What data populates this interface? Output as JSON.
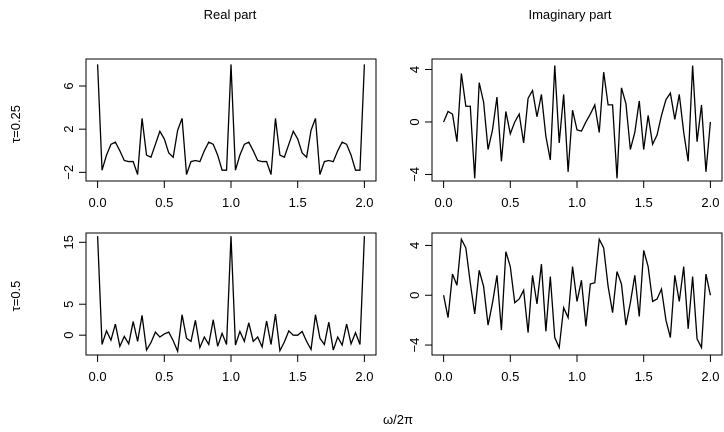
{
  "column_titles": [
    "Real part",
    "Imaginary part"
  ],
  "row_labels": [
    "τ=0.25",
    "τ=0.5"
  ],
  "shared_xlabel": "ω/2π",
  "chart_data": [
    {
      "type": "line",
      "panel": "top-left",
      "title": "Real part",
      "ylabel": "τ=0.25",
      "xlim": [
        0,
        2
      ],
      "ylim": [
        -2.8,
        8.5
      ],
      "xticks": [
        0.0,
        0.5,
        1.0,
        1.5,
        2.0
      ],
      "xtick_labels": [
        "0.0",
        "0.5",
        "1.0",
        "1.5",
        "2.0"
      ],
      "yticks": [
        -2,
        2,
        6
      ],
      "ytick_labels": [
        "−2",
        "2",
        "6"
      ],
      "x": [
        0,
        0.0333,
        0.0667,
        0.1,
        0.1333,
        0.1667,
        0.2,
        0.2333,
        0.2667,
        0.3,
        0.3333,
        0.3667,
        0.4,
        0.4333,
        0.4667,
        0.5,
        0.5333,
        0.5667,
        0.6,
        0.6333,
        0.6667,
        0.7,
        0.7333,
        0.7667,
        0.8,
        0.8333,
        0.8667,
        0.9,
        0.9333,
        0.9667,
        1.0,
        1.0333,
        1.0667,
        1.1,
        1.1333,
        1.1667,
        1.2,
        1.2333,
        1.2667,
        1.3,
        1.3333,
        1.3667,
        1.4,
        1.4333,
        1.4667,
        1.5,
        1.5333,
        1.5667,
        1.6,
        1.6333,
        1.6667,
        1.7,
        1.7333,
        1.7667,
        1.8,
        1.8333,
        1.8667,
        1.9,
        1.9333,
        1.9667,
        2.0
      ],
      "series": [
        {
          "values": [
            8.0,
            -1.8,
            -0.4,
            0.6,
            0.8,
            0.0,
            -0.9,
            -1.0,
            -1.0,
            -2.2,
            3.0,
            -0.4,
            -0.6,
            0.6,
            1.8,
            1.1,
            -0.2,
            -0.6,
            1.9,
            3.0,
            -2.2,
            -1.0,
            -0.9,
            -1.0,
            0.0,
            0.8,
            0.6,
            -0.4,
            -1.8,
            -1.8,
            8.0,
            -1.8,
            -0.4,
            0.6,
            0.8,
            0.0,
            -0.9,
            -1.0,
            -1.0,
            -2.2,
            3.0,
            -0.4,
            -0.6,
            0.6,
            1.8,
            1.1,
            -0.2,
            -0.6,
            1.9,
            3.0,
            -2.2,
            -1.0,
            -0.9,
            -1.0,
            0.0,
            0.8,
            0.6,
            -0.4,
            -1.8,
            -1.8,
            8.0
          ]
        }
      ]
    },
    {
      "type": "line",
      "panel": "top-right",
      "title": "Imaginary part",
      "xlim": [
        0,
        2
      ],
      "ylim": [
        -4.5,
        4.8
      ],
      "xticks": [
        0.0,
        0.5,
        1.0,
        1.5,
        2.0
      ],
      "xtick_labels": [
        "0.0",
        "0.5",
        "1.0",
        "1.5",
        "2.0"
      ],
      "yticks": [
        -4,
        0,
        4
      ],
      "ytick_labels": [
        "−4",
        "0",
        "4"
      ],
      "x": [
        0,
        0.0333,
        0.0667,
        0.1,
        0.1333,
        0.1667,
        0.2,
        0.2333,
        0.2667,
        0.3,
        0.3333,
        0.3667,
        0.4,
        0.4333,
        0.4667,
        0.5,
        0.5333,
        0.5667,
        0.6,
        0.6333,
        0.6667,
        0.7,
        0.7333,
        0.7667,
        0.8,
        0.8333,
        0.8667,
        0.9,
        0.9333,
        0.9667,
        1.0,
        1.0333,
        1.0667,
        1.1,
        1.1333,
        1.1667,
        1.2,
        1.2333,
        1.2667,
        1.3,
        1.3333,
        1.3667,
        1.4,
        1.4333,
        1.4667,
        1.5,
        1.5333,
        1.5667,
        1.6,
        1.6333,
        1.6667,
        1.7,
        1.7333,
        1.7667,
        1.8,
        1.8333,
        1.8667,
        1.9,
        1.9333,
        1.9667,
        2.0
      ],
      "series": [
        {
          "values": [
            0.0,
            0.8,
            0.6,
            -1.5,
            3.7,
            1.2,
            1.2,
            -4.3,
            3.0,
            1.5,
            -2.1,
            -0.6,
            1.9,
            -3.0,
            0.8,
            -0.9,
            0.0,
            0.6,
            -1.6,
            1.8,
            2.4,
            0.4,
            2.1,
            -1.1,
            -2.9,
            4.3,
            -1.6,
            2.1,
            -3.8,
            0.9,
            -0.6,
            -0.7,
            0.0,
            0.6,
            1.3,
            -0.8,
            3.8,
            1.3,
            1.3,
            -4.3,
            2.6,
            1.4,
            -2.1,
            -0.8,
            1.6,
            -2.1,
            0.5,
            -1.7,
            -1.0,
            0.5,
            1.7,
            2.2,
            0.2,
            2.1,
            -0.8,
            -3.0,
            4.3,
            -1.5,
            1.3,
            -3.8,
            0.0
          ]
        }
      ]
    },
    {
      "type": "line",
      "panel": "bottom-left",
      "ylabel": "τ=0.5",
      "xlim": [
        0,
        2
      ],
      "ylim": [
        -3.2,
        16.5
      ],
      "xticks": [
        0.0,
        0.5,
        1.0,
        1.5,
        2.0
      ],
      "xtick_labels": [
        "0.0",
        "0.5",
        "1.0",
        "1.5",
        "2.0"
      ],
      "yticks": [
        0,
        5,
        15
      ],
      "ytick_labels": [
        "0",
        "5",
        "15"
      ],
      "x": [
        0,
        0.0333,
        0.0667,
        0.1,
        0.1333,
        0.1667,
        0.2,
        0.2333,
        0.2667,
        0.3,
        0.3333,
        0.3667,
        0.4,
        0.4333,
        0.4667,
        0.5,
        0.5333,
        0.5667,
        0.6,
        0.6333,
        0.6667,
        0.7,
        0.7333,
        0.7667,
        0.8,
        0.8333,
        0.8667,
        0.9,
        0.9333,
        0.9667,
        1.0,
        1.0333,
        1.0667,
        1.1,
        1.1333,
        1.1667,
        1.2,
        1.2333,
        1.2667,
        1.3,
        1.3333,
        1.3667,
        1.4,
        1.4333,
        1.4667,
        1.5,
        1.5333,
        1.5667,
        1.6,
        1.6333,
        1.6667,
        1.7,
        1.7333,
        1.7667,
        1.8,
        1.8333,
        1.8667,
        1.9,
        1.9333,
        1.9667,
        2.0
      ],
      "series": [
        {
          "values": [
            16.0,
            -1.5,
            0.7,
            -0.8,
            1.8,
            -1.8,
            -0.2,
            -1.4,
            2.2,
            -1.0,
            3.2,
            -2.4,
            -1.2,
            0.5,
            -0.3,
            0.2,
            0.5,
            -0.9,
            -2.6,
            3.3,
            -0.5,
            -1.0,
            2.4,
            -2.0,
            -0.3,
            -1.5,
            2.5,
            -1.8,
            0.3,
            -1.5,
            16.0,
            -1.6,
            0.6,
            -1.0,
            2.0,
            -1.0,
            -0.3,
            -1.9,
            2.3,
            -1.5,
            3.4,
            -2.5,
            -1.1,
            0.7,
            0.0,
            0.0,
            0.6,
            -1.0,
            -2.3,
            3.3,
            -0.5,
            -1.5,
            2.1,
            -2.4,
            -0.3,
            -1.6,
            1.8,
            -1.4,
            0.4,
            -1.5,
            16.0
          ]
        }
      ]
    },
    {
      "type": "line",
      "panel": "bottom-right",
      "xlim": [
        0,
        2
      ],
      "ylim": [
        -4.8,
        5.0
      ],
      "xticks": [
        0.0,
        0.5,
        1.0,
        1.5,
        2.0
      ],
      "xtick_labels": [
        "0.0",
        "0.5",
        "1.0",
        "1.5",
        "2.0"
      ],
      "yticks": [
        -4,
        0,
        4
      ],
      "ytick_labels": [
        "−4",
        "0",
        "4"
      ],
      "x": [
        0,
        0.0333,
        0.0667,
        0.1,
        0.1333,
        0.1667,
        0.2,
        0.2333,
        0.2667,
        0.3,
        0.3333,
        0.3667,
        0.4,
        0.4333,
        0.4667,
        0.5,
        0.5333,
        0.5667,
        0.6,
        0.6333,
        0.6667,
        0.7,
        0.7333,
        0.7667,
        0.8,
        0.8333,
        0.8667,
        0.9,
        0.9333,
        0.9667,
        1.0,
        1.0333,
        1.0667,
        1.1,
        1.1333,
        1.1667,
        1.2,
        1.2333,
        1.2667,
        1.3,
        1.3333,
        1.3667,
        1.4,
        1.4333,
        1.4667,
        1.5,
        1.5333,
        1.5667,
        1.6,
        1.6333,
        1.6667,
        1.7,
        1.7333,
        1.7667,
        1.8,
        1.8333,
        1.8667,
        1.9,
        1.9333,
        1.9667,
        2.0
      ],
      "series": [
        {
          "values": [
            0.0,
            -1.8,
            1.7,
            0.8,
            4.5,
            3.8,
            1.0,
            -1.5,
            2.0,
            0.7,
            -2.4,
            -0.6,
            1.6,
            -2.8,
            3.5,
            2.3,
            -0.6,
            -0.3,
            0.4,
            -3.0,
            1.6,
            -0.7,
            2.5,
            -2.9,
            1.5,
            -3.4,
            -4.2,
            -1.0,
            -1.8,
            2.3,
            -0.5,
            1.2,
            -2.5,
            0.9,
            1.0,
            4.5,
            3.8,
            0.7,
            -1.4,
            1.9,
            0.9,
            -2.4,
            -0.6,
            1.6,
            -1.7,
            3.6,
            2.3,
            -0.5,
            -0.3,
            0.5,
            -2.0,
            -3.4,
            1.6,
            -0.5,
            2.3,
            -2.7,
            1.5,
            -3.5,
            -4.2,
            1.7,
            0.0
          ]
        }
      ]
    }
  ]
}
